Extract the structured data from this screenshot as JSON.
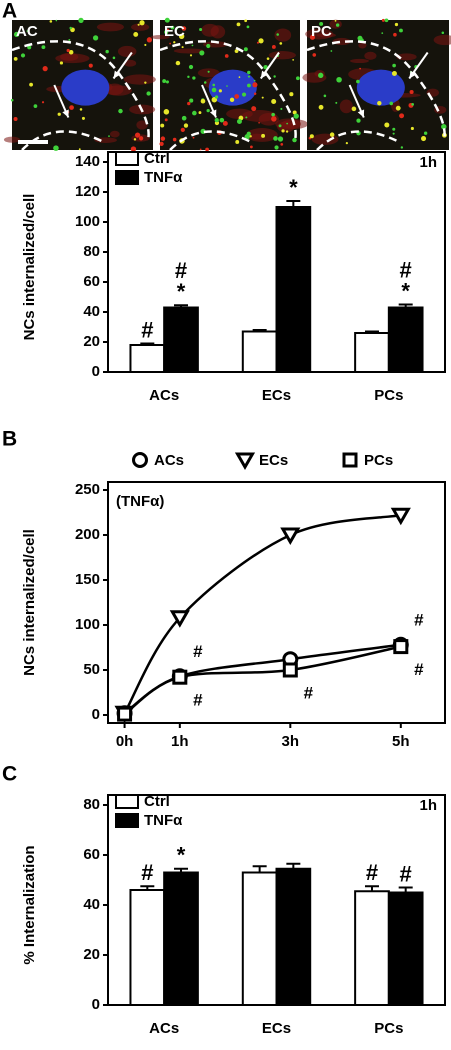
{
  "panel_labels": [
    "A",
    "B",
    "C"
  ],
  "micrograph_labels": [
    "AC",
    "EC",
    "PC"
  ],
  "chart_data": [
    {
      "type": "bar",
      "ylabel": "NCs internalized/cell",
      "annotation": "1h",
      "categories": [
        "ACs",
        "ECs",
        "PCs"
      ],
      "series": [
        {
          "name": "Ctrl",
          "color": "#ffffff",
          "values": [
            18,
            27,
            26
          ],
          "errors": [
            1,
            1,
            1
          ],
          "marks": [
            [
              "#"
            ],
            [],
            []
          ]
        },
        {
          "name": "TNFα",
          "color": "#000000",
          "values": [
            43,
            110,
            43
          ],
          "errors": [
            1.5,
            4,
            2
          ],
          "marks": [
            [
              "#",
              "*"
            ],
            [
              "*"
            ],
            [
              "#",
              "*"
            ]
          ]
        }
      ],
      "ylim": [
        0,
        140
      ],
      "yticks": [
        0,
        20,
        40,
        60,
        80,
        100,
        120,
        140
      ],
      "legend": "upper left"
    },
    {
      "type": "line",
      "ylabel": "NCs internalized/cell",
      "subtitle": "(TNFα)",
      "x": [
        0,
        1,
        3,
        5
      ],
      "xlim": [
        -0.3,
        5.8
      ],
      "xticks": [
        {
          "value": 0,
          "label": "0h"
        },
        {
          "value": 1,
          "label": "1h"
        },
        {
          "value": 3,
          "label": "3h"
        },
        {
          "value": 5,
          "label": "5h"
        }
      ],
      "series": [
        {
          "name": "ACs",
          "color": "#000000",
          "marker": "circle",
          "values": [
            2,
            43,
            62,
            78
          ],
          "marks": [
            null,
            "#",
            null,
            "#"
          ],
          "mark_side": "above"
        },
        {
          "name": "ECs",
          "color": "#000000",
          "marker": "triangle-down",
          "values": [
            2,
            108,
            200,
            222
          ]
        },
        {
          "name": "PCs",
          "color": "#000000",
          "marker": "square",
          "values": [
            1,
            42,
            50,
            76
          ],
          "marks": [
            null,
            "#",
            "#",
            "#"
          ],
          "mark_side": "below"
        }
      ],
      "ylim": [
        0,
        250
      ],
      "yticks": [
        0,
        50,
        100,
        150,
        200,
        250
      ],
      "legend": "top"
    },
    {
      "type": "bar",
      "ylabel": "% Internalization",
      "annotation": "1h",
      "categories": [
        "ACs",
        "ECs",
        "PCs"
      ],
      "series": [
        {
          "name": "Ctrl",
          "color": "#ffffff",
          "values": [
            46,
            53,
            45.5
          ],
          "errors": [
            1.5,
            2.5,
            2
          ],
          "marks": [
            [
              "#"
            ],
            [],
            [
              "#"
            ]
          ]
        },
        {
          "name": "TNFα",
          "color": "#000000",
          "values": [
            53,
            54.5,
            45
          ],
          "errors": [
            1.5,
            2,
            2
          ],
          "marks": [
            [
              "*"
            ],
            [],
            [
              "#"
            ]
          ]
        }
      ],
      "ylim": [
        0,
        80
      ],
      "yticks": [
        0,
        20,
        40,
        60,
        80
      ],
      "legend": "upper left"
    }
  ]
}
